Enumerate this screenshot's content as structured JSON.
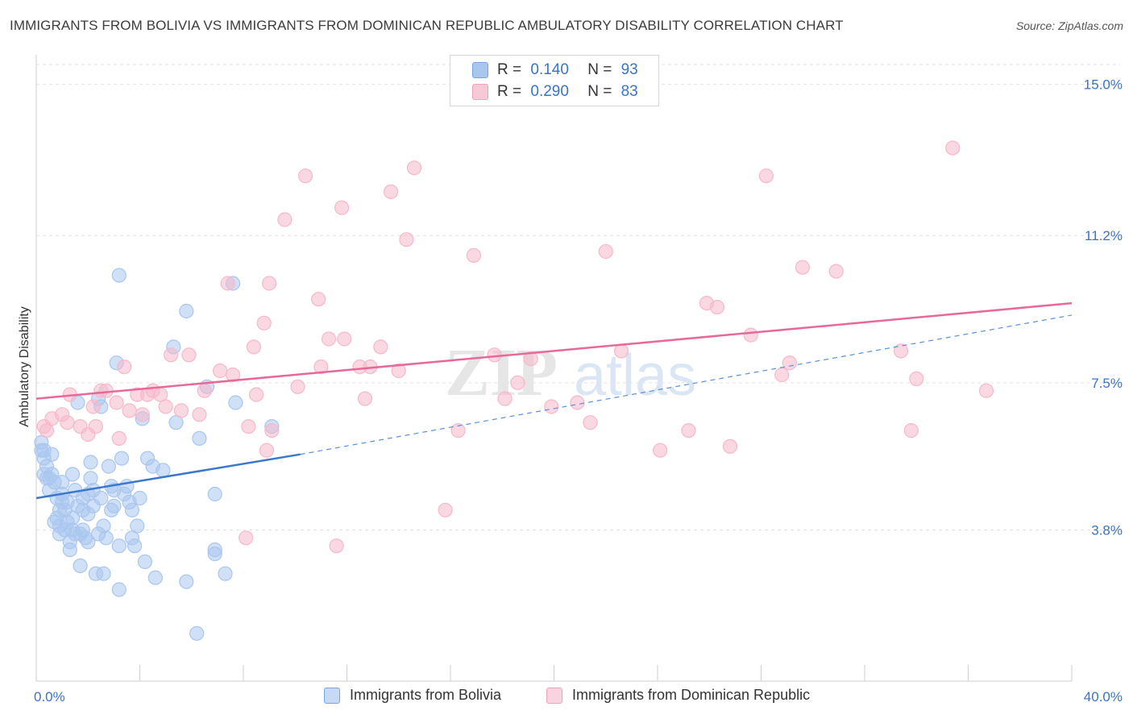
{
  "title": "IMMIGRANTS FROM BOLIVIA VS IMMIGRANTS FROM DOMINICAN REPUBLIC AMBULATORY DISABILITY CORRELATION CHART",
  "source": "Source: ZipAtlas.com",
  "watermark": {
    "zip": "ZIP",
    "atlas": "atlas"
  },
  "legend": {
    "rows": [
      {
        "r_label": "R =",
        "r_value": "0.140",
        "n_label": "N =",
        "n_value": "93",
        "color": "#a9c6ee"
      },
      {
        "r_label": "R =",
        "r_value": "0.290",
        "n_label": "N =",
        "n_value": "83",
        "color": "#f6b8cb"
      }
    ]
  },
  "bottom_legend": [
    {
      "label": "Immigrants from Bolivia",
      "color": "#a9c6ee"
    },
    {
      "label": "Immigrants from Dominican Republic",
      "color": "#f6b8cb"
    }
  ],
  "chart_data": {
    "type": "scatter",
    "title": "IMMIGRANTS FROM BOLIVIA VS IMMIGRANTS FROM DOMINICAN REPUBLIC AMBULATORY DISABILITY CORRELATION CHART",
    "xlabel": "",
    "ylabel": "Ambulatory Disability",
    "xlim": [
      0,
      40
    ],
    "ylim": [
      0,
      15.5
    ],
    "x_tick_labels": [
      "0.0%",
      "40.0%"
    ],
    "y_ticks": [
      3.8,
      7.5,
      11.2,
      15.0
    ],
    "y_tick_labels": [
      "3.8%",
      "7.5%",
      "11.2%",
      "15.0%"
    ],
    "grid": true,
    "legend_position": "top-center",
    "series": [
      {
        "name": "Immigrants from Bolivia",
        "color": "#3a78d0",
        "fill": "#a9c6ee",
        "trend": {
          "x": [
            0,
            10.2
          ],
          "y": [
            4.6,
            5.7
          ],
          "dashed_to": [
            40,
            9.2
          ]
        },
        "points": [
          [
            0.2,
            5.8
          ],
          [
            0.3,
            5.6
          ],
          [
            0.3,
            5.2
          ],
          [
            0.4,
            5.4
          ],
          [
            0.4,
            5.1
          ],
          [
            0.5,
            4.8
          ],
          [
            0.6,
            5.7
          ],
          [
            0.6,
            5.2
          ],
          [
            0.7,
            5.0
          ],
          [
            0.8,
            4.6
          ],
          [
            0.8,
            4.1
          ],
          [
            0.9,
            3.9
          ],
          [
            0.9,
            3.7
          ],
          [
            1.0,
            4.5
          ],
          [
            1.0,
            4.7
          ],
          [
            1.1,
            4.3
          ],
          [
            1.1,
            3.8
          ],
          [
            1.2,
            4.5
          ],
          [
            1.2,
            4.0
          ],
          [
            1.3,
            3.5
          ],
          [
            1.3,
            3.3
          ],
          [
            1.4,
            5.2
          ],
          [
            1.4,
            3.8
          ],
          [
            1.5,
            4.8
          ],
          [
            1.5,
            3.7
          ],
          [
            1.6,
            7.0
          ],
          [
            1.7,
            3.7
          ],
          [
            1.7,
            2.9
          ],
          [
            1.8,
            3.8
          ],
          [
            1.8,
            4.3
          ],
          [
            1.9,
            3.6
          ],
          [
            2.0,
            4.7
          ],
          [
            2.0,
            4.2
          ],
          [
            2.1,
            5.5
          ],
          [
            2.1,
            5.1
          ],
          [
            2.2,
            4.8
          ],
          [
            2.2,
            4.4
          ],
          [
            2.3,
            2.7
          ],
          [
            2.4,
            7.1
          ],
          [
            2.5,
            6.9
          ],
          [
            2.6,
            3.9
          ],
          [
            2.6,
            2.7
          ],
          [
            2.7,
            3.6
          ],
          [
            2.8,
            5.4
          ],
          [
            2.9,
            4.9
          ],
          [
            3.0,
            4.4
          ],
          [
            3.0,
            4.8
          ],
          [
            3.1,
            8.0
          ],
          [
            3.2,
            2.3
          ],
          [
            3.2,
            3.4
          ],
          [
            3.3,
            5.6
          ],
          [
            3.4,
            4.7
          ],
          [
            3.5,
            4.9
          ],
          [
            3.6,
            4.5
          ],
          [
            3.7,
            4.3
          ],
          [
            3.7,
            3.6
          ],
          [
            3.8,
            3.4
          ],
          [
            3.9,
            3.9
          ],
          [
            4.0,
            4.6
          ],
          [
            4.1,
            6.6
          ],
          [
            4.2,
            3.0
          ],
          [
            4.3,
            5.6
          ],
          [
            4.5,
            5.4
          ],
          [
            4.6,
            2.6
          ],
          [
            4.9,
            5.3
          ],
          [
            5.3,
            8.4
          ],
          [
            5.4,
            6.5
          ],
          [
            5.8,
            2.5
          ],
          [
            5.8,
            9.3
          ],
          [
            6.2,
            1.2
          ],
          [
            6.3,
            6.1
          ],
          [
            6.6,
            7.4
          ],
          [
            6.9,
            3.2
          ],
          [
            6.9,
            4.7
          ],
          [
            6.9,
            3.3
          ],
          [
            7.3,
            2.7
          ],
          [
            7.6,
            10.0
          ],
          [
            7.7,
            7.0
          ],
          [
            9.1,
            6.4
          ],
          [
            3.2,
            10.2
          ],
          [
            0.2,
            6.0
          ],
          [
            0.5,
            5.1
          ],
          [
            1.0,
            5.0
          ],
          [
            1.6,
            4.4
          ],
          [
            2.4,
            3.7
          ],
          [
            2.9,
            4.3
          ],
          [
            0.7,
            4.0
          ],
          [
            1.4,
            4.1
          ],
          [
            2.0,
            3.5
          ],
          [
            0.9,
            4.3
          ],
          [
            1.8,
            4.6
          ],
          [
            2.5,
            4.6
          ],
          [
            0.3,
            5.8
          ]
        ]
      },
      {
        "name": "Immigrants from Dominican Republic",
        "color": "#e8689a",
        "fill": "#f6b8cb",
        "trend": {
          "x": [
            0,
            40
          ],
          "y": [
            7.1,
            9.5
          ]
        },
        "points": [
          [
            0.3,
            6.4
          ],
          [
            0.6,
            6.6
          ],
          [
            1.0,
            6.7
          ],
          [
            1.2,
            6.5
          ],
          [
            1.3,
            7.2
          ],
          [
            1.7,
            6.4
          ],
          [
            2.0,
            6.2
          ],
          [
            2.2,
            6.9
          ],
          [
            2.5,
            7.3
          ],
          [
            2.7,
            7.3
          ],
          [
            3.1,
            7.0
          ],
          [
            3.2,
            6.1
          ],
          [
            3.4,
            7.9
          ],
          [
            3.6,
            6.8
          ],
          [
            3.9,
            7.2
          ],
          [
            4.1,
            6.7
          ],
          [
            4.3,
            7.2
          ],
          [
            4.5,
            7.3
          ],
          [
            4.8,
            7.2
          ],
          [
            5.0,
            6.9
          ],
          [
            5.2,
            8.2
          ],
          [
            5.6,
            6.8
          ],
          [
            5.9,
            8.2
          ],
          [
            6.3,
            6.7
          ],
          [
            6.5,
            7.3
          ],
          [
            7.1,
            7.8
          ],
          [
            7.4,
            10.0
          ],
          [
            7.6,
            7.7
          ],
          [
            8.1,
            3.6
          ],
          [
            8.2,
            6.4
          ],
          [
            8.4,
            8.4
          ],
          [
            8.5,
            7.2
          ],
          [
            8.8,
            9.0
          ],
          [
            8.9,
            5.8
          ],
          [
            9.0,
            10.0
          ],
          [
            9.1,
            6.3
          ],
          [
            9.6,
            11.6
          ],
          [
            10.1,
            7.4
          ],
          [
            10.4,
            12.7
          ],
          [
            10.9,
            9.6
          ],
          [
            11.0,
            7.9
          ],
          [
            11.3,
            8.6
          ],
          [
            11.6,
            3.4
          ],
          [
            11.8,
            11.9
          ],
          [
            11.9,
            8.6
          ],
          [
            12.5,
            7.9
          ],
          [
            12.7,
            7.1
          ],
          [
            12.9,
            7.9
          ],
          [
            13.3,
            8.4
          ],
          [
            13.7,
            12.3
          ],
          [
            14.0,
            7.8
          ],
          [
            14.3,
            11.1
          ],
          [
            14.6,
            12.9
          ],
          [
            15.8,
            4.3
          ],
          [
            16.3,
            6.3
          ],
          [
            16.9,
            10.7
          ],
          [
            17.7,
            8.2
          ],
          [
            18.1,
            7.1
          ],
          [
            18.6,
            7.5
          ],
          [
            19.1,
            8.1
          ],
          [
            19.9,
            6.9
          ],
          [
            20.9,
            7.0
          ],
          [
            21.4,
            6.5
          ],
          [
            22.0,
            10.8
          ],
          [
            22.6,
            8.3
          ],
          [
            24.1,
            5.8
          ],
          [
            25.2,
            6.3
          ],
          [
            25.9,
            9.5
          ],
          [
            26.3,
            9.4
          ],
          [
            26.8,
            5.9
          ],
          [
            27.6,
            8.7
          ],
          [
            28.2,
            12.7
          ],
          [
            28.8,
            7.7
          ],
          [
            29.1,
            8.0
          ],
          [
            29.6,
            10.4
          ],
          [
            30.9,
            10.3
          ],
          [
            33.4,
            8.3
          ],
          [
            34.0,
            7.6
          ],
          [
            33.8,
            6.3
          ],
          [
            35.4,
            13.4
          ],
          [
            36.7,
            7.3
          ],
          [
            0.4,
            6.3
          ],
          [
            2.3,
            6.4
          ]
        ]
      }
    ]
  }
}
